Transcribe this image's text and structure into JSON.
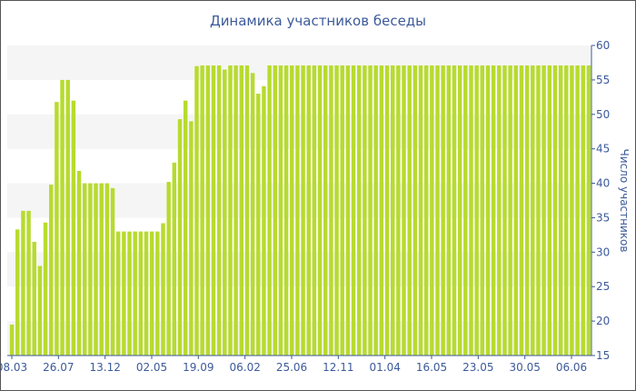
{
  "chart_data": {
    "type": "bar",
    "title": "Динамика участников беседы",
    "xlabel": "",
    "ylabel": "Число участников",
    "ylim": [
      15,
      60
    ],
    "yticks": [
      15,
      20,
      25,
      30,
      35,
      40,
      45,
      50,
      55,
      60
    ],
    "xtick_labels": [
      "08.03",
      "26.07",
      "13.12",
      "02.05",
      "19.09",
      "06.02",
      "25.06",
      "12.11",
      "01.04",
      "16.05",
      "23.05",
      "30.05",
      "06.06"
    ],
    "axis_side_y": "right",
    "bar_color": "#b7db2e",
    "stripe_color": "#f5f5f5",
    "values": [
      19.5,
      33.3,
      36,
      36,
      31.5,
      28,
      34.3,
      39.8,
      51.8,
      55,
      55,
      52,
      41.8,
      40,
      40,
      40,
      40,
      40,
      39.3,
      33,
      33,
      33,
      33,
      33,
      33,
      33,
      33,
      34.2,
      40.2,
      43,
      49.3,
      52,
      49,
      57,
      57.1,
      57.1,
      57.1,
      57.1,
      56.5,
      57.1,
      57.1,
      57.1,
      57.1,
      56,
      53,
      54.1,
      57.1,
      57.1,
      57.1,
      57.1,
      57.1,
      57.1,
      57.1,
      57.1,
      57.1,
      57.1,
      57.1,
      57.1,
      57.1,
      57.1,
      57.1,
      57.1,
      57.1,
      57.1,
      57.1,
      57.1,
      57.1,
      57.1,
      57.1,
      57.1,
      57.1,
      57.1,
      57.1,
      57.1,
      57.1,
      57.1,
      57.1,
      57.1,
      57.1,
      57.1,
      57.1,
      57.1,
      57.1,
      57.1,
      57.1,
      57.1,
      57.1,
      57.1,
      57.1,
      57.1,
      57.1,
      57.1,
      57.1,
      57.1,
      57.1,
      57.1,
      57.1,
      57.1,
      57.1,
      57.1,
      57.1,
      57.1,
      57.1,
      57.1
    ]
  }
}
